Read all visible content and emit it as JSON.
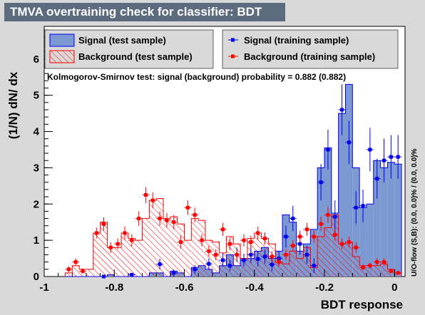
{
  "title": "TMVA overtraining check for classifier: BDT",
  "ks_text": "Kolmogorov-Smirnov test: signal (background) probability = 0.882 (0.882)",
  "side_text": "U/O-flow (S,B): (0.0, 0.0)% / (0.0, 0.0)%",
  "legend": {
    "signal_test": "Signal (test sample)",
    "background_test": "Background (test sample)",
    "signal_train": "Signal (training sample)",
    "background_train": "Background (training sample)"
  },
  "colors": {
    "signal_fill": "#7d99d1",
    "signal_line": "#0000ee",
    "background_line": "#ff0000",
    "signal_marker": "#0000ee",
    "background_marker": "#ff0000",
    "title_bg": "#5c6b7e",
    "canvas_bg": "#d9d9d9",
    "plot_bg": "#ffffff"
  },
  "chart_data": {
    "type": "histogram",
    "xlabel": "BDT response",
    "ylabel": "(1/N) dN/ dx",
    "xlim": [
      -1,
      0.03
    ],
    "ylim": [
      0,
      6.9
    ],
    "x_ticks": [
      "-1",
      "-0.8",
      "-0.6",
      "-0.4",
      "-0.2",
      "0"
    ],
    "y_ticks": [
      "0",
      "1",
      "2",
      "3",
      "4",
      "5",
      "6"
    ],
    "bin_edges": [
      -0.94,
      -0.92,
      -0.9,
      -0.88,
      -0.86,
      -0.84,
      -0.82,
      -0.8,
      -0.78,
      -0.76,
      -0.74,
      -0.72,
      -0.7,
      -0.68,
      -0.66,
      -0.64,
      -0.62,
      -0.6,
      -0.58,
      -0.56,
      -0.54,
      -0.52,
      -0.5,
      -0.48,
      -0.46,
      -0.44,
      -0.42,
      -0.4,
      -0.38,
      -0.36,
      -0.34,
      -0.32,
      -0.3,
      -0.28,
      -0.26,
      -0.24,
      -0.22,
      -0.2,
      -0.18,
      -0.16,
      -0.14,
      -0.12,
      -0.1,
      -0.08,
      -0.06,
      -0.04,
      -0.02,
      0.0,
      0.02
    ],
    "series": [
      {
        "name": "Signal (test sample)",
        "style": "filled histogram",
        "values": [
          0,
          0,
          0,
          0,
          0,
          0,
          0.05,
          0.0,
          0.0,
          0.0,
          0.0,
          0.0,
          0.1,
          0.1,
          0.0,
          0.15,
          0.1,
          0.0,
          0.25,
          0.3,
          0.2,
          0.1,
          0.3,
          0.6,
          0.3,
          0.5,
          0.5,
          0.7,
          0.8,
          0.5,
          0.7,
          1.7,
          1.5,
          0.7,
          0.9,
          1.3,
          3.0,
          3.55,
          1.75,
          4.5,
          5.3,
          3.0,
          1.9,
          2.0,
          3.2,
          3.0,
          3.15,
          3.1
        ]
      },
      {
        "name": "Background (test sample)",
        "style": "hatched histogram",
        "values": [
          0.1,
          0.3,
          0.2,
          0.2,
          1.2,
          1.5,
          0.8,
          0.8,
          1.2,
          1.05,
          1.0,
          1.6,
          2.1,
          2.15,
          1.6,
          1.65,
          1.45,
          1.0,
          1.6,
          1.55,
          1.0,
          0.95,
          0.65,
          1.1,
          0.9,
          0.5,
          1.05,
          1.2,
          1.05,
          0.9,
          0.4,
          0.35,
          0.7,
          0.5,
          0.8,
          0.25,
          1.1,
          1.35,
          1.7,
          0.9,
          0.95,
          0.55,
          0.3,
          0.3,
          0.3,
          0.35,
          0.2,
          0.1
        ]
      },
      {
        "name": "Signal (training sample)",
        "style": "markers with error bars",
        "points": [
          [
            -0.83,
            0.0,
            0.05
          ],
          [
            -0.75,
            0.05,
            0.05
          ],
          [
            -0.67,
            0.34,
            0.15
          ],
          [
            -0.63,
            0.1,
            0.1
          ],
          [
            -0.57,
            0.2,
            0.12
          ],
          [
            -0.53,
            0.35,
            0.15
          ],
          [
            -0.49,
            0.45,
            0.18
          ],
          [
            -0.47,
            0.3,
            0.15
          ],
          [
            -0.45,
            0.6,
            0.2
          ],
          [
            -0.43,
            0.45,
            0.18
          ],
          [
            -0.41,
            0.6,
            0.22
          ],
          [
            -0.39,
            0.48,
            0.2
          ],
          [
            -0.37,
            0.55,
            0.2
          ],
          [
            -0.35,
            0.33,
            0.18
          ],
          [
            -0.33,
            0.5,
            0.2
          ],
          [
            -0.31,
            1.1,
            0.3
          ],
          [
            -0.29,
            1.6,
            0.35
          ],
          [
            -0.27,
            0.9,
            0.3
          ],
          [
            -0.25,
            0.6,
            0.25
          ],
          [
            -0.23,
            0.3,
            0.2
          ],
          [
            -0.21,
            2.6,
            0.5
          ],
          [
            -0.19,
            3.5,
            0.55
          ],
          [
            -0.17,
            1.65,
            0.45
          ],
          [
            -0.15,
            4.6,
            0.7
          ],
          [
            -0.13,
            3.7,
            0.6
          ],
          [
            -0.11,
            1.9,
            0.45
          ],
          [
            -0.09,
            1.95,
            0.45
          ],
          [
            -0.07,
            3.5,
            0.6
          ],
          [
            -0.05,
            2.7,
            0.55
          ],
          [
            -0.03,
            3.2,
            0.6
          ],
          [
            -0.01,
            3.3,
            0.6
          ],
          [
            0.01,
            3.3,
            0.6
          ]
        ]
      },
      {
        "name": "Background (training sample)",
        "style": "markers with error bars",
        "points": [
          [
            -0.93,
            0.2,
            0.08
          ],
          [
            -0.91,
            0.4,
            0.1
          ],
          [
            -0.89,
            0.15,
            0.08
          ],
          [
            -0.85,
            1.2,
            0.15
          ],
          [
            -0.83,
            1.45,
            0.18
          ],
          [
            -0.81,
            0.8,
            0.15
          ],
          [
            -0.79,
            0.9,
            0.15
          ],
          [
            -0.77,
            1.2,
            0.18
          ],
          [
            -0.75,
            1.0,
            0.17
          ],
          [
            -0.73,
            1.6,
            0.2
          ],
          [
            -0.71,
            2.25,
            0.22
          ],
          [
            -0.69,
            2.1,
            0.22
          ],
          [
            -0.67,
            1.6,
            0.2
          ],
          [
            -0.65,
            1.55,
            0.2
          ],
          [
            -0.63,
            1.5,
            0.2
          ],
          [
            -0.61,
            0.95,
            0.18
          ],
          [
            -0.59,
            1.9,
            0.2
          ],
          [
            -0.57,
            1.7,
            0.2
          ],
          [
            -0.55,
            1.0,
            0.17
          ],
          [
            -0.53,
            0.7,
            0.15
          ],
          [
            -0.51,
            0.6,
            0.15
          ],
          [
            -0.49,
            1.3,
            0.18
          ],
          [
            -0.47,
            0.9,
            0.17
          ],
          [
            -0.45,
            0.6,
            0.15
          ],
          [
            -0.43,
            1.0,
            0.17
          ],
          [
            -0.41,
            0.95,
            0.17
          ],
          [
            -0.39,
            1.2,
            0.18
          ],
          [
            -0.37,
            1.05,
            0.17
          ],
          [
            -0.35,
            0.55,
            0.15
          ],
          [
            -0.33,
            0.4,
            0.12
          ],
          [
            -0.31,
            0.6,
            0.15
          ],
          [
            -0.29,
            0.85,
            0.15
          ],
          [
            -0.27,
            1.1,
            0.17
          ],
          [
            -0.25,
            1.3,
            0.18
          ],
          [
            -0.23,
            1.1,
            0.17
          ],
          [
            -0.21,
            1.45,
            0.2
          ],
          [
            -0.19,
            1.7,
            0.22
          ],
          [
            -0.17,
            1.15,
            0.17
          ],
          [
            -0.15,
            0.9,
            0.15
          ],
          [
            -0.13,
            0.95,
            0.15
          ],
          [
            -0.11,
            0.8,
            0.15
          ],
          [
            -0.09,
            0.25,
            0.08
          ],
          [
            -0.07,
            0.3,
            0.08
          ],
          [
            -0.05,
            0.4,
            0.1
          ],
          [
            -0.03,
            0.4,
            0.1
          ],
          [
            -0.01,
            0.15,
            0.06
          ],
          [
            0.01,
            0.1,
            0.05
          ]
        ]
      }
    ]
  }
}
